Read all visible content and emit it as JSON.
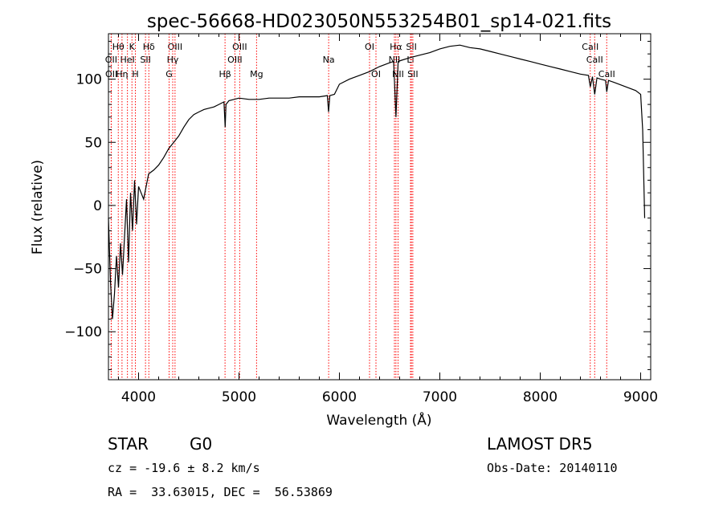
{
  "chart_data": {
    "type": "line",
    "title": "spec-56668-HD023050N553254B01_sp14-021.fits",
    "xlabel": "Wavelength (Å)",
    "ylabel": "Flux (relative)",
    "xlim": [
      3700,
      9100
    ],
    "ylim": [
      -138,
      136
    ],
    "xticks": [
      4000,
      5000,
      6000,
      7000,
      8000,
      9000
    ],
    "yticks": [
      -100,
      -50,
      0,
      50,
      100
    ],
    "grid": false,
    "line_color": "#000000",
    "marker_color": "#ff0000",
    "spectrum": {
      "x": [
        3700,
        3720,
        3740,
        3760,
        3780,
        3800,
        3820,
        3840,
        3860,
        3880,
        3900,
        3920,
        3940,
        3960,
        3980,
        4000,
        4050,
        4100,
        4150,
        4200,
        4250,
        4300,
        4350,
        4400,
        4450,
        4500,
        4550,
        4600,
        4650,
        4700,
        4750,
        4800,
        4850,
        4862,
        4870,
        4900,
        4950,
        5000,
        5100,
        5200,
        5300,
        5400,
        5500,
        5600,
        5700,
        5800,
        5880,
        5892,
        5905,
        5950,
        6000,
        6100,
        6200,
        6300,
        6400,
        6500,
        6540,
        6563,
        6585,
        6620,
        6700,
        6800,
        6900,
        7000,
        7100,
        7200,
        7300,
        7400,
        7500,
        7600,
        7700,
        7800,
        7900,
        8000,
        8100,
        8200,
        8300,
        8400,
        8480,
        8498,
        8520,
        8542,
        8565,
        8600,
        8650,
        8662,
        8680,
        8750,
        8850,
        8950,
        9000,
        9020,
        9040
      ],
      "y": [
        -10,
        -60,
        -90,
        -70,
        -40,
        -65,
        -30,
        -55,
        -25,
        5,
        -45,
        10,
        -20,
        20,
        -15,
        15,
        5,
        25,
        28,
        32,
        38,
        45,
        50,
        55,
        62,
        68,
        72,
        74,
        76,
        77,
        78,
        80,
        82,
        62,
        80,
        83,
        84,
        85,
        84,
        84,
        85,
        85,
        85,
        86,
        86,
        86,
        87,
        74,
        87,
        88,
        96,
        100,
        103,
        106,
        110,
        113,
        114,
        70,
        114,
        115,
        117,
        119,
        121,
        124,
        126,
        127,
        125,
        124,
        122,
        120,
        118,
        116,
        114,
        112,
        110,
        108,
        106,
        104,
        103,
        94,
        102,
        88,
        101,
        100,
        99,
        90,
        99,
        97,
        94,
        91,
        88,
        60,
        -10
      ]
    },
    "lines": [
      {
        "label": "Hθ",
        "x": 3798,
        "row": 1
      },
      {
        "label": "K",
        "x": 3934,
        "row": 1
      },
      {
        "label": "Hδ",
        "x": 4102,
        "row": 1
      },
      {
        "label": "OIII",
        "x": 4363,
        "row": 1
      },
      {
        "label": "OIII",
        "x": 5007,
        "row": 1
      },
      {
        "label": "OI",
        "x": 6300,
        "row": 1
      },
      {
        "label": "Hα",
        "x": 6563,
        "row": 1
      },
      {
        "label": "SII",
        "x": 6717,
        "row": 1
      },
      {
        "label": "CaII",
        "x": 8498,
        "row": 1
      },
      {
        "label": "OII",
        "x": 3727,
        "row": 2
      },
      {
        "label": "HeI",
        "x": 3889,
        "row": 2
      },
      {
        "label": "SII",
        "x": 4069,
        "row": 2
      },
      {
        "label": "Hγ",
        "x": 4340,
        "row": 2
      },
      {
        "label": "OIII",
        "x": 4959,
        "row": 2
      },
      {
        "label": "Na",
        "x": 5893,
        "row": 2
      },
      {
        "label": "NII",
        "x": 6548,
        "row": 2
      },
      {
        "label": "Li",
        "x": 6708,
        "row": 2
      },
      {
        "label": "CaII",
        "x": 8542,
        "row": 2
      },
      {
        "label": "OII",
        "x": 3729,
        "row": 3
      },
      {
        "label": "Hη",
        "x": 3835,
        "row": 3
      },
      {
        "label": "H",
        "x": 3968,
        "row": 3
      },
      {
        "label": "G",
        "x": 4304,
        "row": 3
      },
      {
        "label": "Hβ",
        "x": 4861,
        "row": 3
      },
      {
        "label": "Mg",
        "x": 5175,
        "row": 3
      },
      {
        "label": "OI",
        "x": 6364,
        "row": 3
      },
      {
        "label": "NII",
        "x": 6584,
        "row": 3
      },
      {
        "label": "SII",
        "x": 6731,
        "row": 3
      },
      {
        "label": "CaII",
        "x": 8662,
        "row": 3
      }
    ]
  },
  "info": {
    "class": "STAR",
    "subclass": "G0",
    "survey": "LAMOST DR5",
    "cz": "cz = -19.6 ± 8.2 km/s",
    "obs_date": "Obs-Date: 20140110",
    "coords": "RA =  33.63015, DEC =  56.53869"
  }
}
